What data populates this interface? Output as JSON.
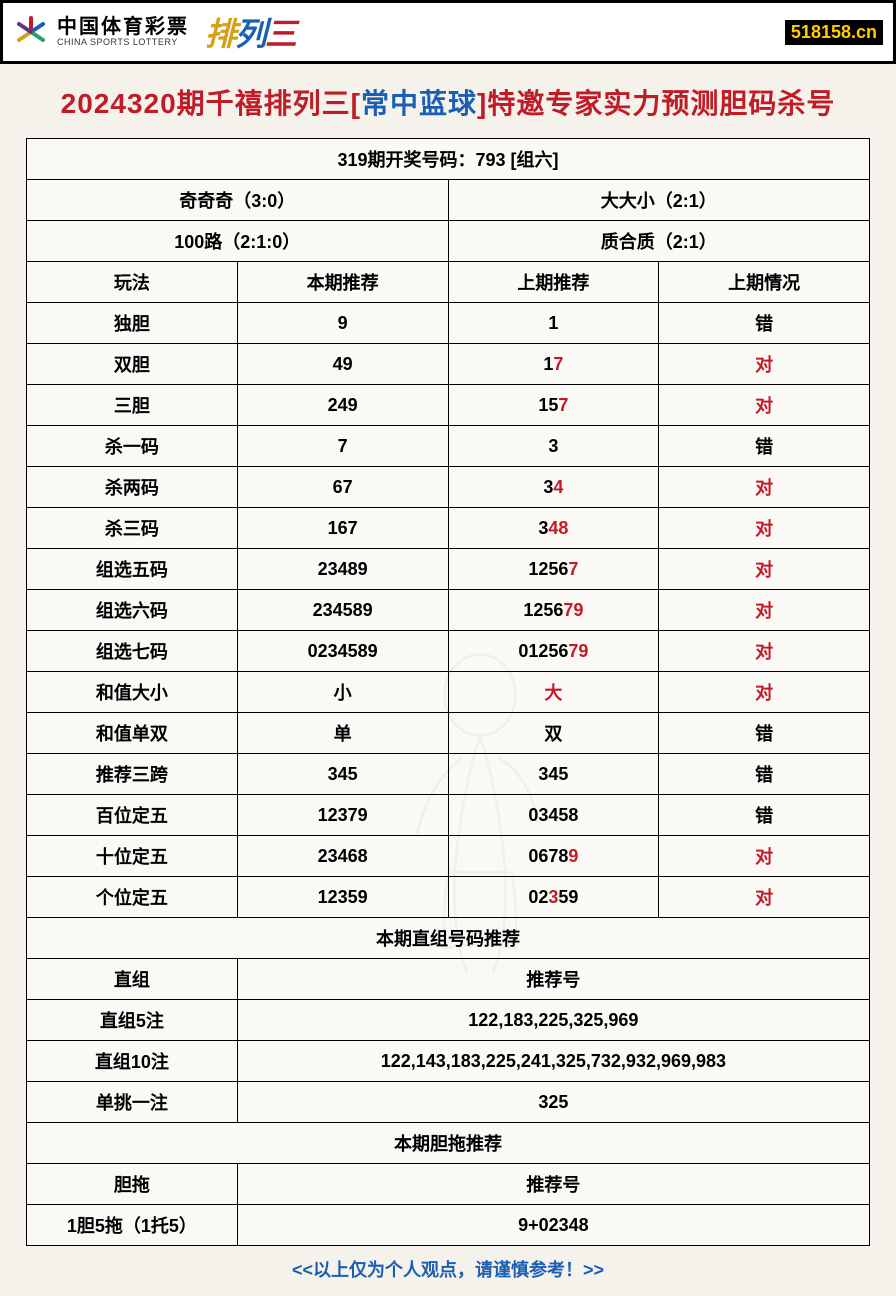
{
  "header": {
    "logo_cn": "中国体育彩票",
    "logo_en": "CHINA SPORTS LOTTERY",
    "pailie": [
      "排",
      "列",
      "三"
    ],
    "badge": "518158.cn"
  },
  "title": {
    "prefix": "2024320期千禧排列三[",
    "blue": "常中蓝球",
    "suffix": "]特邀专家实力预测胆码杀号"
  },
  "result_row": "319期开奖号码：793 [组六]",
  "summary": {
    "r1c1": "奇奇奇（3:0）",
    "r1c2": "大大小（2:1）",
    "r2c1": "100路（2:1:0）",
    "r2c2": "质合质（2:1）"
  },
  "columns": [
    "玩法",
    "本期推荐",
    "上期推荐",
    "上期情况"
  ],
  "rows": [
    {
      "name": "独胆",
      "curr": "9",
      "prev": [
        [
          "1",
          false
        ]
      ],
      "status": "错",
      "status_red": false
    },
    {
      "name": "双胆",
      "curr": "49",
      "prev": [
        [
          "1",
          false
        ],
        [
          "7",
          true
        ]
      ],
      "status": "对",
      "status_red": true
    },
    {
      "name": "三胆",
      "curr": "249",
      "prev": [
        [
          "15",
          false
        ],
        [
          "7",
          true
        ]
      ],
      "status": "对",
      "status_red": true
    },
    {
      "name": "杀一码",
      "curr": "7",
      "prev": [
        [
          "3",
          false
        ]
      ],
      "status": "错",
      "status_red": false
    },
    {
      "name": "杀两码",
      "curr": "67",
      "prev": [
        [
          "3",
          false
        ],
        [
          "4",
          true
        ]
      ],
      "status": "对",
      "status_red": true
    },
    {
      "name": "杀三码",
      "curr": "167",
      "prev": [
        [
          "3",
          false
        ],
        [
          "48",
          true
        ]
      ],
      "status": "对",
      "status_red": true
    },
    {
      "name": "组选五码",
      "curr": "23489",
      "prev": [
        [
          "1256",
          false
        ],
        [
          "7",
          true
        ]
      ],
      "status": "对",
      "status_red": true
    },
    {
      "name": "组选六码",
      "curr": "234589",
      "prev": [
        [
          "1256",
          false
        ],
        [
          "79",
          true
        ]
      ],
      "status": "对",
      "status_red": true
    },
    {
      "name": "组选七码",
      "curr": "0234589",
      "prev": [
        [
          "01256",
          false
        ],
        [
          "79",
          true
        ]
      ],
      "status": "对",
      "status_red": true
    },
    {
      "name": "和值大小",
      "curr": "小",
      "prev": [
        [
          "大",
          true
        ]
      ],
      "status": "对",
      "status_red": true
    },
    {
      "name": "和值单双",
      "curr": "单",
      "prev": [
        [
          "双",
          false
        ]
      ],
      "status": "错",
      "status_red": false
    },
    {
      "name": "推荐三跨",
      "curr": "345",
      "prev": [
        [
          "345",
          false
        ]
      ],
      "status": "错",
      "status_red": false
    },
    {
      "name": "百位定五",
      "curr": "12379",
      "prev": [
        [
          "03458",
          false
        ]
      ],
      "status": "错",
      "status_red": false
    },
    {
      "name": "十位定五",
      "curr": "23468",
      "prev": [
        [
          "0678",
          false
        ],
        [
          "9",
          true
        ]
      ],
      "status": "对",
      "status_red": true
    },
    {
      "name": "个位定五",
      "curr": "12359",
      "prev": [
        [
          "02",
          false
        ],
        [
          "3",
          true
        ],
        [
          "59",
          false
        ]
      ],
      "status": "对",
      "status_red": true
    }
  ],
  "section2_title": "本期直组号码推荐",
  "section2_header": [
    "直组",
    "推荐号"
  ],
  "section2_rows": [
    {
      "name": "直组5注",
      "val": "122,183,225,325,969"
    },
    {
      "name": "直组10注",
      "val": "122,143,183,225,241,325,732,932,969,983"
    },
    {
      "name": "单挑一注",
      "val": "325"
    }
  ],
  "section3_title": "本期胆拖推荐",
  "section3_header": [
    "胆拖",
    "推荐号"
  ],
  "section3_rows": [
    {
      "name": "1胆5拖（1托5）",
      "val": "9+02348"
    }
  ],
  "footer": "<<以上仅为个人观点，请谨慎参考！>>"
}
